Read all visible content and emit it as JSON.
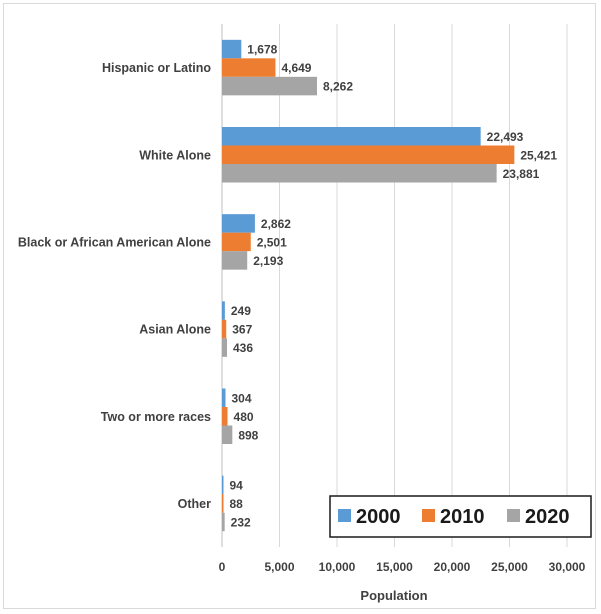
{
  "chart_data": {
    "type": "bar",
    "orientation": "horizontal",
    "title": "",
    "xlabel": "Population",
    "ylabel": "",
    "xlim": [
      0,
      30000
    ],
    "x_ticks": [
      0,
      5000,
      10000,
      15000,
      20000,
      25000,
      30000
    ],
    "x_tick_labels": [
      "0",
      "5,000",
      "10,000",
      "15,000",
      "20,000",
      "25,000",
      "30,000"
    ],
    "grid": "vertical",
    "legend_position": "bottom-right",
    "categories": [
      "Hispanic or Latino",
      "White Alone",
      "Black or African American Alone",
      "Asian Alone",
      "Two or more races",
      "Other"
    ],
    "series": [
      {
        "name": "2000",
        "color": "#5b9bd5",
        "values": [
          1678,
          22493,
          2862,
          249,
          304,
          94
        ],
        "labels": [
          "1,678",
          "22,493",
          "2,862",
          "249",
          "304",
          "94"
        ]
      },
      {
        "name": "2010",
        "color": "#ed7d31",
        "values": [
          4649,
          25421,
          2501,
          367,
          480,
          88
        ],
        "labels": [
          "4,649",
          "25,421",
          "2,501",
          "367",
          "480",
          "88"
        ]
      },
      {
        "name": "2020",
        "color": "#a5a5a5",
        "values": [
          8262,
          23881,
          2193,
          436,
          898,
          232
        ],
        "labels": [
          "8,262",
          "23,881",
          "2,193",
          "436",
          "898",
          "232"
        ]
      }
    ]
  }
}
